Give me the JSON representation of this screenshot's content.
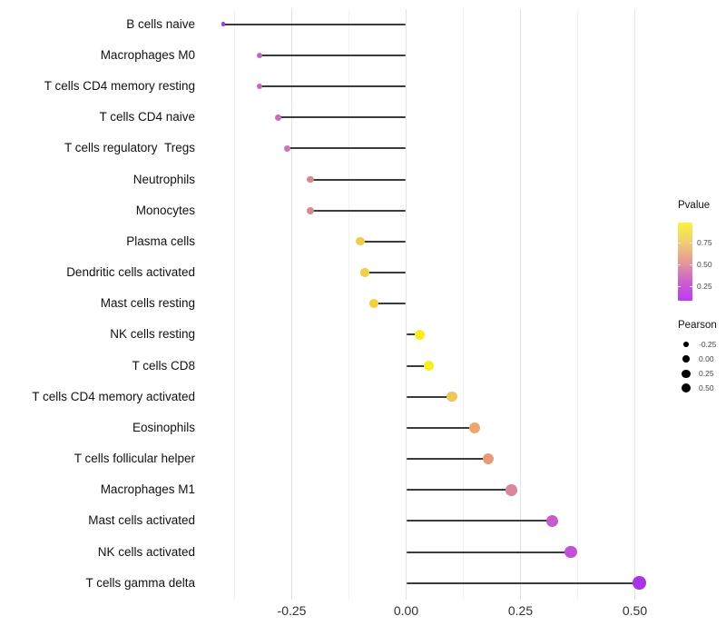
{
  "chart_data": {
    "type": "lollipop",
    "title": "",
    "xlabel": "",
    "ylabel": "",
    "xlim": [
      -0.45,
      0.57
    ],
    "x_tick_values": [
      -0.25,
      0.0,
      0.25,
      0.5
    ],
    "x_tick_labels": [
      "-0.25",
      "0.00",
      "0.25",
      "0.50"
    ],
    "x_minor_tick_values": [
      -0.375,
      -0.125,
      0.125,
      0.375
    ],
    "grid": "major and minor vertical gridlines on white background",
    "legend_position": "right",
    "points": [
      {
        "label": "B cells naive",
        "pearson": -0.4,
        "color": "#a43bd6"
      },
      {
        "label": "Macrophages M0",
        "pearson": -0.32,
        "color": "#c565c0"
      },
      {
        "label": "T cells CD4 memory resting",
        "pearson": -0.32,
        "color": "#c468be"
      },
      {
        "label": "T cells CD4 naive",
        "pearson": -0.28,
        "color": "#c86fbc"
      },
      {
        "label": "T cells regulatory  Tregs",
        "pearson": -0.26,
        "color": "#ca74b9"
      },
      {
        "label": "Neutrophils",
        "pearson": -0.21,
        "color": "#d28b94"
      },
      {
        "label": "Monocytes",
        "pearson": -0.21,
        "color": "#d28b93"
      },
      {
        "label": "Plasma cells",
        "pearson": -0.1,
        "color": "#efce4e"
      },
      {
        "label": "Dendritic cells activated",
        "pearson": -0.09,
        "color": "#f0d04a"
      },
      {
        "label": "Mast cells resting",
        "pearson": -0.07,
        "color": "#f2d33f"
      },
      {
        "label": "NK cells resting",
        "pearson": 0.03,
        "color": "#f7ee1c"
      },
      {
        "label": "T cells CD8",
        "pearson": 0.05,
        "color": "#f7ed20"
      },
      {
        "label": "T cells CD4 memory activated",
        "pearson": 0.1,
        "color": "#efc65a"
      },
      {
        "label": "Eosinophils",
        "pearson": 0.15,
        "color": "#e8a86e"
      },
      {
        "label": "T cells follicular helper",
        "pearson": 0.18,
        "color": "#e59a79"
      },
      {
        "label": "Macrophages M1",
        "pearson": 0.23,
        "color": "#d9879d"
      },
      {
        "label": "Mast cells activated",
        "pearson": 0.32,
        "color": "#c75bcb"
      },
      {
        "label": "NK cells activated",
        "pearson": 0.36,
        "color": "#c050d5"
      },
      {
        "label": "T cells gamma delta",
        "pearson": 0.51,
        "color": "#a934e6"
      }
    ],
    "color_legend": {
      "title": "Pvalue",
      "tick_values": [
        0.75,
        0.5,
        0.25
      ],
      "tick_labels": [
        "0.75",
        "0.50",
        "0.25"
      ],
      "gradient_stops_top_to_bottom": [
        "#faf23b",
        "#f1ce74",
        "#e49b97",
        "#cb63ce",
        "#bb3bef"
      ]
    },
    "size_legend": {
      "title": "Pearson",
      "entries": [
        {
          "value": -0.25,
          "label": "-0.25"
        },
        {
          "value": 0.0,
          "label": "0.00"
        },
        {
          "value": 0.25,
          "label": "0.25"
        },
        {
          "value": 0.5,
          "label": "0.50"
        }
      ],
      "dot_color": "#000000"
    }
  },
  "colors": {
    "background": "#ffffff",
    "segment": "#3b3b3b",
    "grid_major": "#e3e3e3",
    "grid_minor": "#f2f2f2",
    "axis_text": "#303030",
    "y_label_text": "#111111"
  }
}
